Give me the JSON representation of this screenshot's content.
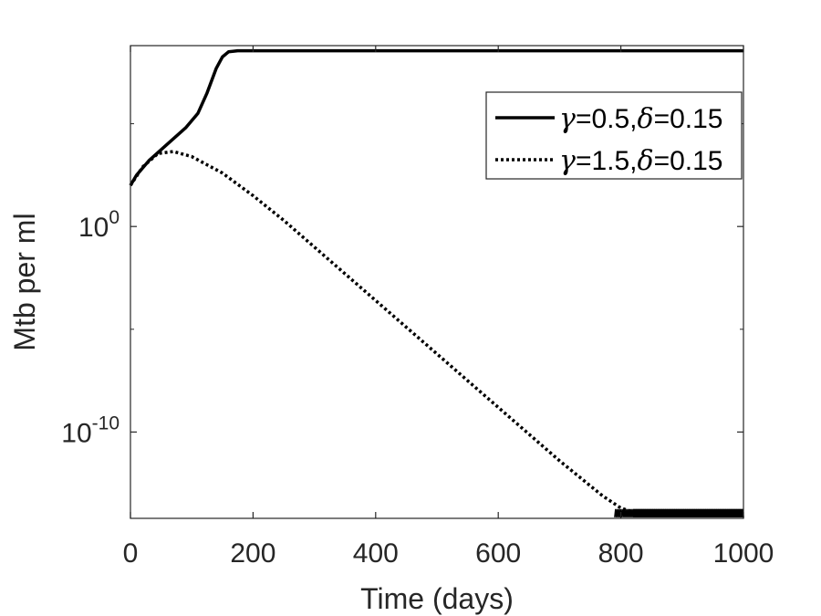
{
  "chart_data": {
    "type": "line",
    "xlabel": "Time (days)",
    "ylabel": "Mtb per ml",
    "xlim": [
      0,
      1000
    ],
    "ylim_log10": [
      -14.2,
      8.8
    ],
    "y_scale": "log",
    "grid": false,
    "x_ticks": [
      {
        "value": 0,
        "label": "0"
      },
      {
        "value": 200,
        "label": "200"
      },
      {
        "value": 400,
        "label": "400"
      },
      {
        "value": 600,
        "label": "600"
      },
      {
        "value": 800,
        "label": "800"
      },
      {
        "value": 1000,
        "label": "1000"
      }
    ],
    "y_ticks": [
      {
        "log10": 0,
        "base": "10",
        "exp": "0"
      },
      {
        "log10": -10,
        "base": "10",
        "exp": "-10"
      }
    ],
    "y_minor_ticks_log10": [
      5,
      -5
    ],
    "legend": {
      "position": "top-right",
      "entries": [
        {
          "series_index": 0,
          "greek1": "γ",
          "mid": "=0.5,",
          "greek2": "δ",
          "tail": "=0.15"
        },
        {
          "series_index": 1,
          "greek1": "γ",
          "mid": "=1.5,",
          "greek2": "δ",
          "tail": "=0.15"
        }
      ]
    },
    "series": [
      {
        "name": "γ=0.5,δ=0.15",
        "style": "solid",
        "color": "#000000",
        "points": [
          [
            0,
            2
          ],
          [
            10,
            2.5
          ],
          [
            30,
            3.2
          ],
          [
            60,
            4.0
          ],
          [
            90,
            4.8
          ],
          [
            110,
            5.5
          ],
          [
            125,
            6.5
          ],
          [
            140,
            7.7
          ],
          [
            150,
            8.25
          ],
          [
            160,
            8.5
          ],
          [
            175,
            8.55
          ],
          [
            200,
            8.55
          ],
          [
            400,
            8.55
          ],
          [
            600,
            8.55
          ],
          [
            800,
            8.55
          ],
          [
            1000,
            8.55
          ]
        ]
      },
      {
        "name": "γ=1.5,δ=0.15",
        "style": "dotted",
        "color": "#000000",
        "points": [
          [
            0,
            2
          ],
          [
            20,
            2.9
          ],
          [
            45,
            3.55
          ],
          [
            70,
            3.65
          ],
          [
            100,
            3.4
          ],
          [
            150,
            2.6
          ],
          [
            200,
            1.5
          ],
          [
            250,
            0.3
          ],
          [
            300,
            -1.0
          ],
          [
            400,
            -3.6
          ],
          [
            500,
            -6.2
          ],
          [
            600,
            -8.8
          ],
          [
            700,
            -11.4
          ],
          [
            770,
            -13.1
          ],
          [
            800,
            -13.7
          ],
          [
            830,
            -14.0
          ],
          [
            870,
            -14.05
          ],
          [
            1000,
            -14.05
          ]
        ]
      }
    ],
    "noise_band": {
      "x_start": 790,
      "x_end": 1000,
      "log10_low": -14.15,
      "log10_high": -13.75
    }
  }
}
